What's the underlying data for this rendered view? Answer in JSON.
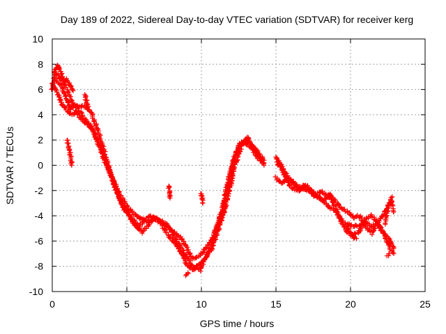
{
  "chart_data": {
    "type": "scatter",
    "title": "Day 189 of 2022, Sidereal Day-to-day VTEC variation (SDTVAR) for receiver kerg",
    "xlabel": "GPS time / hours",
    "ylabel": "SDTVAR / TECUs",
    "xlim": [
      0,
      25
    ],
    "ylim": [
      -10,
      10
    ],
    "x_ticks": [
      0,
      5,
      10,
      15,
      20,
      25
    ],
    "y_ticks": [
      -10,
      -8,
      -6,
      -4,
      -2,
      0,
      2,
      4,
      6,
      8,
      10
    ],
    "grid": true,
    "marker": "+",
    "series_color": "#ff0000",
    "series": [
      {
        "name": "SDTVAR",
        "tracks": [
          {
            "x": [
              0.0,
              0.3,
              0.7,
              1.0,
              1.3,
              1.6,
              2.0,
              2.4,
              2.8,
              3.2,
              3.6,
              4.0,
              4.5,
              5.0,
              5.5,
              6.0,
              6.5,
              7.0,
              7.5,
              8.0,
              8.5,
              9.0,
              9.3,
              9.6,
              10.0,
              10.4,
              10.8,
              11.2,
              11.6,
              12.0,
              12.3,
              12.6,
              13.0,
              13.4,
              13.8,
              14.2
            ],
            "y": [
              6.5,
              5.8,
              4.8,
              4.3,
              4.0,
              4.3,
              3.6,
              3.2,
              2.6,
              1.5,
              0.2,
              -1.0,
              -2.2,
              -3.2,
              -3.9,
              -4.3,
              -4.5,
              -4.2,
              -4.6,
              -5.2,
              -5.6,
              -6.4,
              -7.3,
              -7.4,
              -7.0,
              -6.4,
              -5.6,
              -4.4,
              -2.7,
              -0.5,
              1.0,
              1.8,
              1.7,
              1.3,
              0.6,
              0.2
            ]
          },
          {
            "x": [
              0.1,
              0.5,
              0.9,
              1.2,
              1.6,
              2.0,
              2.3,
              2.7,
              3.0,
              3.4,
              3.8,
              4.2,
              4.6,
              5.0,
              5.4,
              5.8,
              6.2,
              6.7,
              7.2,
              7.7,
              8.2,
              8.6,
              9.0,
              9.4,
              9.8,
              10.2,
              10.6,
              11.0,
              11.4,
              11.8,
              12.2,
              12.6,
              13.0,
              13.4,
              13.8,
              14.2
            ],
            "y": [
              6.8,
              6.5,
              5.5,
              4.5,
              4.6,
              4.0,
              3.5,
              2.9,
              2.0,
              0.6,
              -0.3,
              -1.8,
              -3.0,
              -3.7,
              -4.5,
              -5.0,
              -4.3,
              -4.0,
              -4.5,
              -5.4,
              -6.2,
              -6.8,
              -7.8,
              -8.3,
              -7.9,
              -7.5,
              -6.7,
              -5.3,
              -3.4,
              -1.2,
              0.6,
              1.7,
              2.0,
              1.6,
              1.0,
              0.4
            ]
          },
          {
            "x": [
              0.2,
              0.6,
              1.0,
              1.4,
              1.8,
              2.2,
              2.6,
              3.0,
              3.5,
              4.0,
              4.4,
              4.8,
              5.2,
              5.6,
              6.0,
              6.4,
              6.8,
              7.3,
              7.8,
              8.3,
              8.7,
              9.1,
              9.5,
              9.9,
              10.3,
              10.7,
              11.1,
              11.5,
              11.9,
              12.3,
              12.7,
              13.1,
              13.5,
              13.9,
              14.2
            ],
            "y": [
              7.3,
              6.8,
              6.0,
              4.8,
              4.6,
              4.7,
              4.2,
              3.0,
              1.0,
              -1.0,
              -2.3,
              -3.4,
              -4.0,
              -4.6,
              -5.3,
              -4.8,
              -4.1,
              -4.4,
              -4.8,
              -5.9,
              -6.6,
              -7.4,
              -8.1,
              -8.3,
              -7.2,
              -6.6,
              -5.2,
              -3.8,
              -1.9,
              0.2,
              1.5,
              2.2,
              1.4,
              0.7,
              0.0
            ]
          },
          {
            "x": [
              0.0,
              0.2,
              0.4,
              0.6,
              0.8,
              1.0,
              1.2,
              1.4
            ],
            "y": [
              6.0,
              7.6,
              7.9,
              7.2,
              6.6,
              6.8,
              6.3,
              5.9
            ]
          },
          {
            "x": [
              1.0,
              1.2,
              1.3
            ],
            "y": [
              2.0,
              1.0,
              0.0
            ]
          },
          {
            "x": [
              2.2,
              2.4
            ],
            "y": [
              5.6,
              4.4
            ]
          },
          {
            "x": [
              7.8,
              7.9
            ],
            "y": [
              -1.6,
              -2.6
            ]
          },
          {
            "x": [
              9.0,
              9.1
            ],
            "y": [
              -8.7,
              -8.5
            ]
          },
          {
            "x": [
              10.0,
              10.1
            ],
            "y": [
              -2.2,
              -3.0
            ]
          },
          {
            "x": [
              15.0,
              15.3,
              15.6,
              15.9,
              16.2,
              16.5,
              16.8,
              17.1,
              17.4,
              17.7,
              18.0,
              18.3,
              18.6,
              19.0,
              19.3,
              19.6,
              19.9,
              20.2,
              20.6,
              21.0,
              21.4,
              21.8,
              22.2,
              22.6,
              22.9
            ],
            "y": [
              0.7,
              0.1,
              -0.5,
              -1.1,
              -1.4,
              -1.7,
              -1.9,
              -2.0,
              -2.1,
              -2.4,
              -2.6,
              -3.0,
              -3.4,
              -3.6,
              -4.2,
              -4.6,
              -4.7,
              -4.8,
              -4.8,
              -4.4,
              -4.9,
              -4.6,
              -5.3,
              -5.9,
              -6.6
            ]
          },
          {
            "x": [
              15.1,
              15.4,
              15.7,
              16.0,
              16.3,
              16.6,
              16.9,
              17.2,
              17.5,
              17.8,
              18.1,
              18.4,
              18.7,
              19.0,
              19.4,
              19.8,
              20.2,
              20.6,
              21.0,
              21.4,
              21.8,
              22.2,
              22.6,
              22.9
            ],
            "y": [
              0.2,
              -0.4,
              -1.0,
              -1.7,
              -1.9,
              -2.0,
              -1.6,
              -1.9,
              -2.4,
              -2.2,
              -2.1,
              -2.4,
              -2.6,
              -3.4,
              -4.5,
              -5.3,
              -5.6,
              -5.2,
              -4.3,
              -4.0,
              -4.5,
              -5.4,
              -6.5,
              -7.0
            ]
          },
          {
            "x": [
              15.0,
              15.4,
              15.8,
              16.2,
              16.6,
              17.0,
              17.4,
              17.8,
              18.2,
              18.6,
              19.0,
              19.4,
              19.8,
              20.2,
              20.6,
              21.0,
              21.4,
              21.8,
              22.2,
              22.5,
              22.8
            ],
            "y": [
              -1.0,
              -1.4,
              -1.1,
              -1.5,
              -1.9,
              -1.6,
              -2.0,
              -2.6,
              -2.8,
              -2.2,
              -2.9,
              -3.4,
              -3.7,
              -4.1,
              -4.0,
              -4.8,
              -5.4,
              -4.6,
              -4.0,
              -3.3,
              -2.5
            ]
          },
          {
            "x": [
              19.8,
              20.0,
              20.2,
              20.4
            ],
            "y": [
              -4.8,
              -5.4,
              -5.7,
              -5.8
            ]
          },
          {
            "x": [
              22.3,
              22.5,
              22.7,
              22.9
            ],
            "y": [
              -4.6,
              -3.4,
              -2.8,
              -3.7
            ]
          },
          {
            "x": [
              22.5,
              22.6
            ],
            "y": [
              -7.2,
              -7.0
            ]
          }
        ]
      }
    ]
  }
}
